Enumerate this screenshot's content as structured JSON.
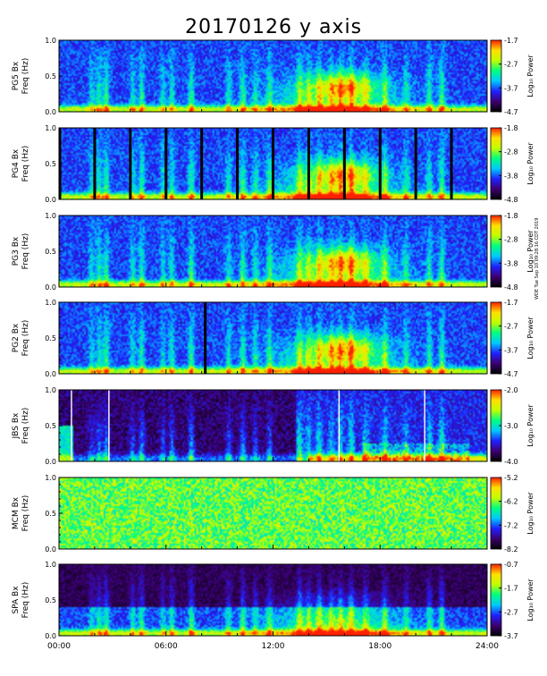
{
  "chart_data": {
    "type": "heatmap",
    "title": "20170126 y axis",
    "x_ticks": [
      "00:00",
      "06:00",
      "12:00",
      "18:00",
      "24:00"
    ],
    "xlim_hours": [
      0,
      24
    ],
    "colorbar_label": "Log₁₀ Power",
    "colormap": [
      "#000000",
      "#3d0070",
      "#2020ff",
      "#00c8ff",
      "#00ff80",
      "#c0ff00",
      "#ffe000",
      "#ff2000"
    ],
    "panels": [
      {
        "name": "PG5",
        "ylabel1": "PG5 Bx",
        "ylabel2": "Freq (Hz)",
        "yticks": [
          "0.0",
          "0.5",
          "1.0"
        ],
        "ylim": [
          0,
          1.0
        ],
        "cticks": [
          "-1.7",
          "-2.7",
          "-3.7",
          "-4.7"
        ],
        "clim": [
          -4.7,
          -1.7
        ],
        "style": "blue",
        "gaps": [],
        "whitelines": []
      },
      {
        "name": "PG4",
        "ylabel1": "PG4 Bx",
        "ylabel2": "Freq (Hz)",
        "yticks": [
          "0.0",
          "0.5",
          "1.0"
        ],
        "ylim": [
          0,
          1.0
        ],
        "cticks": [
          "-1.8",
          "-2.8",
          "-3.8",
          "-4.8"
        ],
        "clim": [
          -4.8,
          -1.8
        ],
        "style": "blue",
        "gaps": [
          0.05,
          2.0,
          4.0,
          6.0,
          8.0,
          10.0,
          12.0,
          14.0,
          16.0,
          18.0,
          20.0,
          22.0
        ],
        "whitelines": []
      },
      {
        "name": "PG3",
        "ylabel1": "PG3 Bx",
        "ylabel2": "Freq (Hz)",
        "yticks": [
          "0.0",
          "0.5",
          "1.0"
        ],
        "ylim": [
          0,
          1.0
        ],
        "cticks": [
          "-1.8",
          "-2.8",
          "-3.8",
          "-4.8"
        ],
        "clim": [
          -4.8,
          -1.8
        ],
        "style": "blue",
        "gaps": [],
        "whitelines": []
      },
      {
        "name": "PG2",
        "ylabel1": "PG2 Bx",
        "ylabel2": "Freq (Hz)",
        "yticks": [
          "0.0",
          "0.5",
          "1.0"
        ],
        "ylim": [
          0,
          1.0
        ],
        "cticks": [
          "-1.7",
          "-2.7",
          "-3.7",
          "-4.7"
        ],
        "clim": [
          -4.7,
          -1.7
        ],
        "style": "blue",
        "gaps": [
          8.2
        ],
        "whitelines": []
      },
      {
        "name": "JBS",
        "ylabel1": "JBS Bx",
        "ylabel2": "Freq (Hz)",
        "yticks": [
          "0.0",
          "0.5",
          "1.0"
        ],
        "ylim": [
          0,
          1.0
        ],
        "cticks": [
          "-2.0",
          "-3.0",
          "-4.0"
        ],
        "clim": [
          -4.0,
          -2.0
        ],
        "style": "dark",
        "gaps": [],
        "whitelines": [
          0.7,
          2.8,
          15.7,
          20.5
        ]
      },
      {
        "name": "MCM",
        "ylabel1": "MCM Bx",
        "ylabel2": "Freq (Hz)",
        "yticks": [
          "0.0",
          "0.5",
          "1.0"
        ],
        "ylim": [
          0,
          1.0
        ],
        "cticks": [
          "-5.2",
          "-6.2",
          "-7.2",
          "-8.2"
        ],
        "clim": [
          -8.2,
          -5.2
        ],
        "style": "noise",
        "gaps": [],
        "whitelines": []
      },
      {
        "name": "SPA",
        "ylabel1": "SPA Bx",
        "ylabel2": "Freq (Hz)",
        "yticks": [
          "0.0",
          "0.5",
          "1.0"
        ],
        "ylim": [
          0,
          1.0
        ],
        "cticks": [
          "-0.7",
          "-1.7",
          "-2.7",
          "-3.7"
        ],
        "clim": [
          -3.7,
          -0.7
        ],
        "style": "spa",
        "gaps": [],
        "whitelines": []
      }
    ]
  },
  "stamp_text": "WDE Tue Sep 10 09:28:16 CDT 2019"
}
